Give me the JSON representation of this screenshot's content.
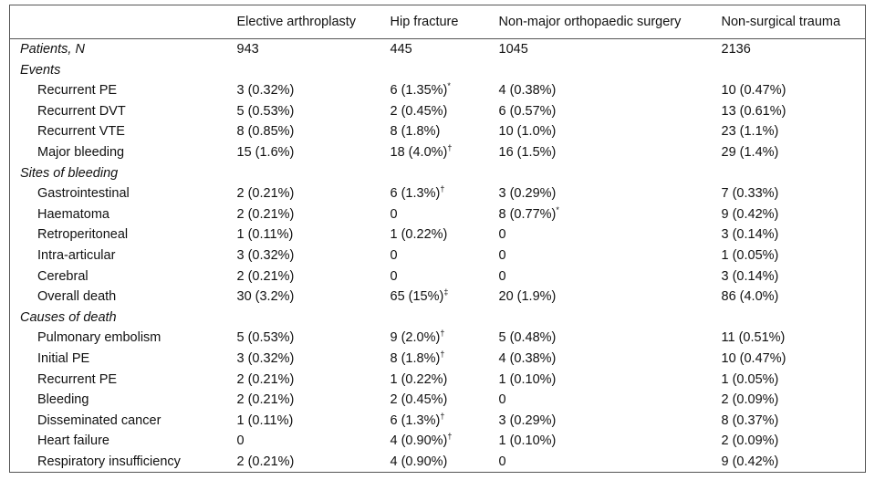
{
  "table": {
    "columns": [
      "Elective arthroplasty",
      "Hip fracture",
      "Non-major orthopaedic surgery",
      "Non-surgical trauma"
    ],
    "rows": [
      {
        "label": "Patients, N",
        "style": "italic",
        "cells": [
          "943",
          "445",
          "1045",
          "2136"
        ]
      },
      {
        "label": "Events",
        "style": "section"
      },
      {
        "label": "Recurrent PE",
        "style": "indent",
        "cells": [
          "3 (0.32%)",
          {
            "text": "6 (1.35%)",
            "sup": "*"
          },
          "4 (0.38%)",
          "10 (0.47%)"
        ]
      },
      {
        "label": "Recurrent DVT",
        "style": "indent",
        "cells": [
          "5 (0.53%)",
          "2 (0.45%)",
          "6 (0.57%)",
          "13 (0.61%)"
        ]
      },
      {
        "label": "Recurrent VTE",
        "style": "indent",
        "cells": [
          "8 (0.85%)",
          "8 (1.8%)",
          "10 (1.0%)",
          "23 (1.1%)"
        ]
      },
      {
        "label": "Major bleeding",
        "style": "indent",
        "cells": [
          "15 (1.6%)",
          {
            "text": "18 (4.0%)",
            "sup": "†"
          },
          "16 (1.5%)",
          "29 (1.4%)"
        ]
      },
      {
        "label": "Sites of bleeding",
        "style": "section"
      },
      {
        "label": "Gastrointestinal",
        "style": "indent",
        "cells": [
          "2 (0.21%)",
          {
            "text": "6 (1.3%)",
            "sup": "†"
          },
          "3 (0.29%)",
          "7 (0.33%)"
        ]
      },
      {
        "label": "Haematoma",
        "style": "indent",
        "cells": [
          "2 (0.21%)",
          "0",
          {
            "text": "8 (0.77%)",
            "sup": "*"
          },
          "9 (0.42%)"
        ]
      },
      {
        "label": "Retroperitoneal",
        "style": "indent",
        "cells": [
          "1 (0.11%)",
          "1 (0.22%)",
          "0",
          "3 (0.14%)"
        ]
      },
      {
        "label": "Intra-articular",
        "style": "indent",
        "cells": [
          "3 (0.32%)",
          "0",
          "0",
          "1 (0.05%)"
        ]
      },
      {
        "label": "Cerebral",
        "style": "indent",
        "cells": [
          "2 (0.21%)",
          "0",
          "0",
          "3 (0.14%)"
        ]
      },
      {
        "label": "Overall death",
        "style": "indent",
        "cells": [
          "30 (3.2%)",
          {
            "text": "65 (15%)",
            "sup": "‡"
          },
          "20 (1.9%)",
          "86 (4.0%)"
        ]
      },
      {
        "label": "Causes of death",
        "style": "section"
      },
      {
        "label": "Pulmonary embolism",
        "style": "indent",
        "cells": [
          "5 (0.53%)",
          {
            "text": "9 (2.0%)",
            "sup": "†"
          },
          "5 (0.48%)",
          "11 (0.51%)"
        ]
      },
      {
        "label": "Initial PE",
        "style": "indent",
        "cells": [
          "3 (0.32%)",
          {
            "text": "8 (1.8%)",
            "sup": "†"
          },
          "4 (0.38%)",
          "10 (0.47%)"
        ]
      },
      {
        "label": "Recurrent PE",
        "style": "indent",
        "cells": [
          "2 (0.21%)",
          "1 (0.22%)",
          "1 (0.10%)",
          "1 (0.05%)"
        ]
      },
      {
        "label": "Bleeding",
        "style": "indent",
        "cells": [
          "2 (0.21%)",
          "2 (0.45%)",
          "0",
          "2 (0.09%)"
        ]
      },
      {
        "label": "Disseminated cancer",
        "style": "indent",
        "cells": [
          "1 (0.11%)",
          {
            "text": "6 (1.3%)",
            "sup": "†"
          },
          "3 (0.29%)",
          "8 (0.37%)"
        ]
      },
      {
        "label": "Heart failure",
        "style": "indent",
        "cells": [
          "0",
          {
            "text": "4 (0.90%)",
            "sup": "†"
          },
          "1 (0.10%)",
          "2 (0.09%)"
        ]
      },
      {
        "label": "Respiratory insufficiency",
        "style": "indent",
        "cells": [
          "2 (0.21%)",
          "4 (0.90%)",
          "0",
          "9 (0.42%)"
        ]
      }
    ]
  }
}
